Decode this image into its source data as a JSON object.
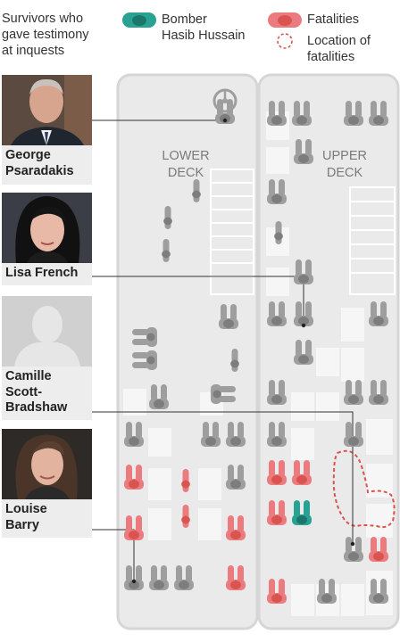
{
  "header": {
    "survivors_label": "Survivors who\ngave testimony\nat inquests",
    "bomber_label": "Bomber\nHasib Hussain",
    "fatalities_label": "Fatalities",
    "location_label": "Location of\nfatalities"
  },
  "deck_labels": {
    "lower": "LOWER\nDECK",
    "upper": "UPPER\nDECK"
  },
  "survivors": [
    {
      "name": "George\nPsaradakis",
      "icon": "man-portrait"
    },
    {
      "name": "Lisa French",
      "icon": "woman-portrait"
    },
    {
      "name": "Camille\nScott-\nBradshaw",
      "icon": "silhouette"
    },
    {
      "name": "Louise\nBarry",
      "icon": "woman-portrait"
    }
  ],
  "colors": {
    "seat_normal": "#9e9e9e",
    "seat_fatality": "#ec7b7f",
    "seat_bomber": "#27a293",
    "deck_floor": "#eaeaea",
    "deck_outline": "#d6d6d6",
    "location_outline": "#d9534f"
  }
}
